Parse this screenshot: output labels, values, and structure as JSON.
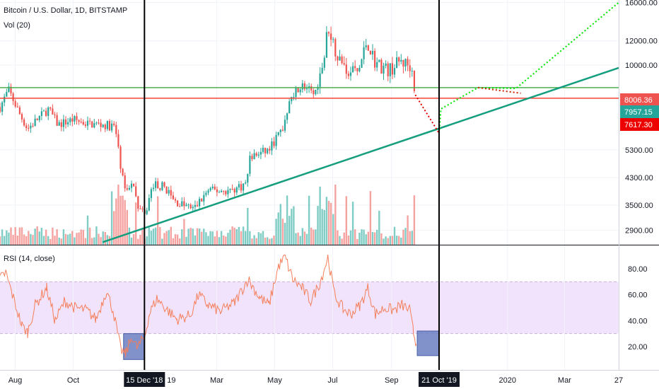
{
  "legend": {
    "symbol": "Bitcoin / U.S. Dollar, 1D, BITSTAMP",
    "volume": "Vol (20)",
    "rsi": "RSI (14, close)"
  },
  "colors": {
    "up": "#26a69a",
    "down": "#ef5350",
    "vol_up": "#7fcdc4",
    "vol_down": "#f5a3a1",
    "trendline": "#159e7e",
    "resistance": "#4caf50",
    "support": "#f44336",
    "forecast_up": "#00e600",
    "forecast_down": "#e60000",
    "rsi_line": "#f57f5b",
    "rsi_band": "#f1e3fb",
    "rsi_box": "#6b7fc1",
    "cursor": "#000000"
  },
  "chart_data": [
    {
      "type": "candlestick",
      "symbol": "Bitcoin / U.S. Dollar",
      "interval": "1D",
      "exchange": "BITSTAMP",
      "y_scale": "log",
      "ylim": [
        2600,
        16300
      ],
      "y_ticks": [
        2900,
        3500,
        4300,
        5300,
        10000,
        12000,
        16000
      ],
      "y_tick_labels": [
        "2900.00",
        "3500.00",
        "4300.00",
        "5300.00",
        "10000.00",
        "12000.00",
        "16000.00"
      ],
      "x_tick_labels": [
        "Aug",
        "Oct",
        "Mar",
        "May",
        "Jul",
        "Sep",
        "2020",
        "Mar",
        "27"
      ],
      "x_tick_dates": [
        "2018-08-01",
        "2018-10-01",
        "2019-03-01",
        "2019-05-01",
        "2019-07-01",
        "2019-09-01",
        "2020-01-01",
        "2020-03-01",
        "2020-04-27"
      ],
      "xlim": [
        "2018-07-16",
        "2020-04-27"
      ],
      "price_labels": [
        {
          "value": "8006.36",
          "color": "#ef5350"
        },
        {
          "value": "7957.15",
          "color": "#26a69a"
        },
        {
          "value": "7617.30",
          "color": "#ef0000"
        }
      ],
      "price_path": [
        {
          "date": "2018-07-16",
          "price": 7300
        },
        {
          "date": "2018-07-25",
          "price": 8300
        },
        {
          "date": "2018-08-05",
          "price": 7000
        },
        {
          "date": "2018-08-14",
          "price": 6200
        },
        {
          "date": "2018-08-25",
          "price": 6700
        },
        {
          "date": "2018-09-05",
          "price": 7200
        },
        {
          "date": "2018-09-15",
          "price": 6400
        },
        {
          "date": "2018-10-01",
          "price": 6650
        },
        {
          "date": "2018-10-15",
          "price": 6450
        },
        {
          "date": "2018-11-01",
          "price": 6400
        },
        {
          "date": "2018-11-14",
          "price": 6300
        },
        {
          "date": "2018-11-20",
          "price": 4700
        },
        {
          "date": "2018-11-25",
          "price": 3800
        },
        {
          "date": "2018-12-01",
          "price": 4200
        },
        {
          "date": "2018-12-08",
          "price": 3500
        },
        {
          "date": "2018-12-15",
          "price": 3200
        },
        {
          "date": "2018-12-24",
          "price": 4100
        },
        {
          "date": "2019-01-06",
          "price": 4000
        },
        {
          "date": "2019-01-15",
          "price": 3600
        },
        {
          "date": "2019-02-05",
          "price": 3400
        },
        {
          "date": "2019-02-20",
          "price": 3900
        },
        {
          "date": "2019-03-15",
          "price": 3900
        },
        {
          "date": "2019-04-01",
          "price": 4100
        },
        {
          "date": "2019-04-05",
          "price": 5000
        },
        {
          "date": "2019-04-25",
          "price": 5300
        },
        {
          "date": "2019-05-10",
          "price": 6300
        },
        {
          "date": "2019-05-18",
          "price": 8000
        },
        {
          "date": "2019-05-30",
          "price": 8600
        },
        {
          "date": "2019-06-12",
          "price": 8000
        },
        {
          "date": "2019-06-22",
          "price": 10500
        },
        {
          "date": "2019-06-26",
          "price": 13500
        },
        {
          "date": "2019-07-05",
          "price": 11000
        },
        {
          "date": "2019-07-17",
          "price": 9600
        },
        {
          "date": "2019-07-28",
          "price": 9500
        },
        {
          "date": "2019-08-06",
          "price": 12000
        },
        {
          "date": "2019-08-15",
          "price": 10200
        },
        {
          "date": "2019-08-29",
          "price": 9600
        },
        {
          "date": "2019-09-10",
          "price": 10300
        },
        {
          "date": "2019-09-22",
          "price": 9900
        },
        {
          "date": "2019-09-26",
          "price": 8000
        }
      ],
      "horizontal_levels": [
        {
          "price": 8450,
          "color": "#4caf50"
        },
        {
          "price": 7800,
          "color": "#f44336"
        }
      ],
      "trendline": [
        {
          "date": "2018-11-01",
          "price": 2650
        },
        {
          "date": "2020-04-27",
          "price": 9800
        }
      ],
      "forecast_down": [
        {
          "date": "2019-09-26",
          "price": 8000
        },
        {
          "date": "2019-10-21",
          "price": 6000
        }
      ],
      "forecast_up": [
        {
          "date": "2019-10-21",
          "price": 6000
        },
        {
          "date": "2019-10-23",
          "price": 7200
        },
        {
          "date": "2019-12-01",
          "price": 8450
        },
        {
          "date": "2020-01-10",
          "price": 8400
        },
        {
          "date": "2020-04-27",
          "price": 16000
        }
      ],
      "forecast_mid": [
        {
          "date": "2019-12-01",
          "price": 8450
        },
        {
          "date": "2020-01-15",
          "price": 8100
        }
      ]
    },
    {
      "type": "line",
      "name": "RSI (14, close)",
      "ylim": [
        2,
        98
      ],
      "y_ticks": [
        20,
        40,
        60,
        80
      ],
      "y_tick_labels": [
        "20.00",
        "40.00",
        "60.00",
        "80.00"
      ],
      "band": [
        30,
        70
      ],
      "series": [
        {
          "x": "2018-07-16",
          "y": 72
        },
        {
          "x": "2018-07-22",
          "y": 77
        },
        {
          "x": "2018-07-29",
          "y": 60
        },
        {
          "x": "2018-08-08",
          "y": 36
        },
        {
          "x": "2018-08-14",
          "y": 31
        },
        {
          "x": "2018-08-22",
          "y": 52
        },
        {
          "x": "2018-09-03",
          "y": 65
        },
        {
          "x": "2018-09-12",
          "y": 40
        },
        {
          "x": "2018-09-22",
          "y": 55
        },
        {
          "x": "2018-10-03",
          "y": 50
        },
        {
          "x": "2018-10-15",
          "y": 48
        },
        {
          "x": "2018-10-25",
          "y": 41
        },
        {
          "x": "2018-11-05",
          "y": 63
        },
        {
          "x": "2018-11-12",
          "y": 48
        },
        {
          "x": "2018-11-20",
          "y": 18
        },
        {
          "x": "2018-11-25",
          "y": 14
        },
        {
          "x": "2018-12-02",
          "y": 28
        },
        {
          "x": "2018-12-07",
          "y": 19
        },
        {
          "x": "2018-12-15",
          "y": 27
        },
        {
          "x": "2018-12-20",
          "y": 45
        },
        {
          "x": "2018-12-28",
          "y": 57
        },
        {
          "x": "2019-01-07",
          "y": 49
        },
        {
          "x": "2019-01-18",
          "y": 41
        },
        {
          "x": "2019-02-01",
          "y": 44
        },
        {
          "x": "2019-02-10",
          "y": 60
        },
        {
          "x": "2019-02-20",
          "y": 52
        },
        {
          "x": "2019-03-05",
          "y": 47
        },
        {
          "x": "2019-03-20",
          "y": 54
        },
        {
          "x": "2019-04-03",
          "y": 72
        },
        {
          "x": "2019-04-15",
          "y": 58
        },
        {
          "x": "2019-04-25",
          "y": 52
        },
        {
          "x": "2019-05-05",
          "y": 82
        },
        {
          "x": "2019-05-12",
          "y": 89
        },
        {
          "x": "2019-05-20",
          "y": 72
        },
        {
          "x": "2019-05-30",
          "y": 65
        },
        {
          "x": "2019-06-08",
          "y": 55
        },
        {
          "x": "2019-06-18",
          "y": 70
        },
        {
          "x": "2019-06-26",
          "y": 89
        },
        {
          "x": "2019-07-03",
          "y": 60
        },
        {
          "x": "2019-07-12",
          "y": 49
        },
        {
          "x": "2019-07-20",
          "y": 45
        },
        {
          "x": "2019-07-30",
          "y": 52
        },
        {
          "x": "2019-08-07",
          "y": 65
        },
        {
          "x": "2019-08-15",
          "y": 45
        },
        {
          "x": "2019-08-25",
          "y": 50
        },
        {
          "x": "2019-09-03",
          "y": 48
        },
        {
          "x": "2019-09-12",
          "y": 52
        },
        {
          "x": "2019-09-20",
          "y": 48
        },
        {
          "x": "2019-09-24",
          "y": 31
        },
        {
          "x": "2019-09-27",
          "y": 22
        }
      ],
      "boxes": [
        {
          "x0": "2018-11-23",
          "x1": "2018-12-15",
          "y0": 10,
          "y1": 30
        },
        {
          "x0": "2019-09-28",
          "x1": "2019-10-21",
          "y0": 13,
          "y1": 32
        }
      ]
    }
  ],
  "crosshair": [
    {
      "date": "2018-12-15",
      "label": "15 Dec '18"
    },
    {
      "date": "2019-10-21",
      "label": "21 Oct '19"
    }
  ],
  "partial_label_fragment": "19"
}
